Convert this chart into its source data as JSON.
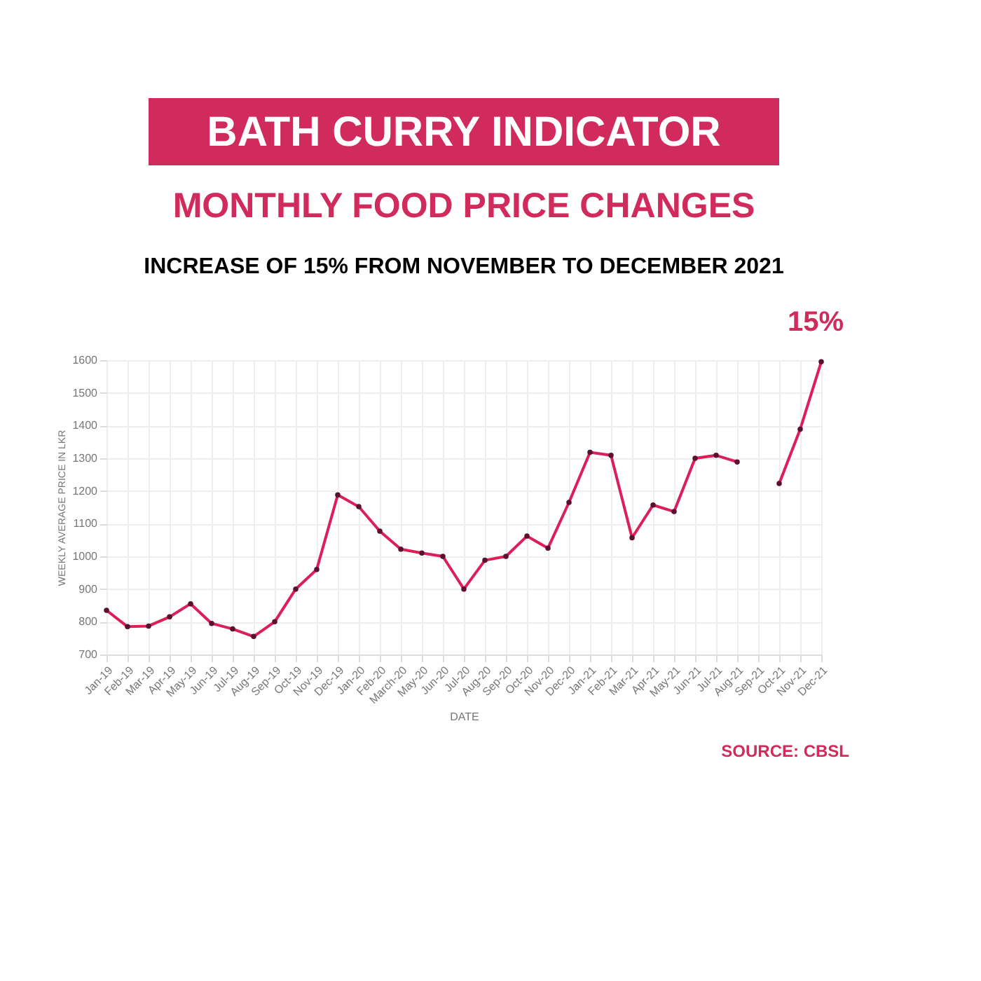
{
  "chart_data": {
    "type": "line",
    "title": "BATH CURRY INDICATOR",
    "subtitle": "MONTHLY FOOD PRICE CHANGES",
    "xlabel": "DATE",
    "ylabel": "WEEKLY AVERAGE PRICE IN LKR",
    "categories": [
      "Jan-19",
      "Feb-19",
      "Mar-19",
      "Apr-19",
      "May-19",
      "Jun-19",
      "Jul-19",
      "Aug-19",
      "Sep-19",
      "Oct-19",
      "Nov-19",
      "Dec-19",
      "Jan-20",
      "Feb-20",
      "March-20",
      "May-20",
      "Jun-20",
      "Jul-20",
      "Aug-20",
      "Sep-20",
      "Oct-20",
      "Nov-20",
      "Dec-20",
      "Jan-21",
      "Feb-21",
      "Mar-21",
      "Apr-21",
      "May-21",
      "Jun-21",
      "Jul-21",
      "Aug-21",
      "Sep-21",
      "Oct-21",
      "Nov-21",
      "Dec-21"
    ],
    "series": [
      {
        "color": "#dc1f5a",
        "values": [
          835,
          785,
          787,
          815,
          855,
          795,
          778,
          755,
          800,
          900,
          960,
          1188,
          1152,
          1077,
          1022,
          1010,
          1000,
          900,
          988,
          1000,
          1062,
          1025,
          1165,
          1318,
          1309,
          1057,
          1157,
          1137,
          1300,
          1309,
          1289,
          null,
          1223,
          1389,
          1595
        ]
      }
    ],
    "ylim": [
      700,
      1600
    ],
    "yticks": [
      700,
      800,
      900,
      1000,
      1100,
      1200,
      1300,
      1400,
      1500,
      1600
    ],
    "grid": true,
    "marker": "circle",
    "line_style": "solid",
    "annotations": [
      "INCREASE OF 15% FROM NOVEMBER TO DECEMBER 2021",
      {
        "text": "15%",
        "x": "Dec-21",
        "y": 1595
      },
      "SOURCE: CBSL"
    ]
  }
}
